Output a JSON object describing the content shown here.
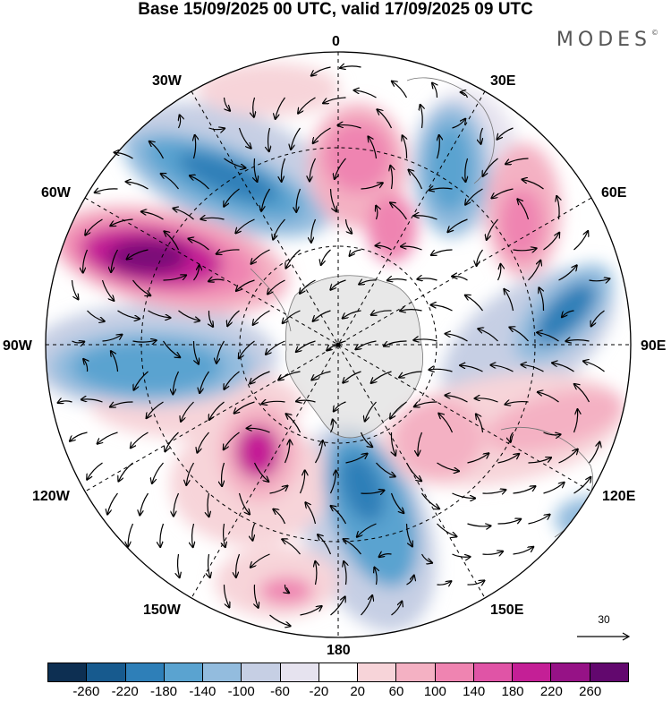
{
  "header": {
    "title": "Base 15/09/2025 00 UTC, valid 17/09/2025 09 UTC",
    "brand": "MODES",
    "brand_mark": "©"
  },
  "map": {
    "projection": "south polar stereographic",
    "longitude_labels": {
      "top": "0",
      "top_right": "30E",
      "right_upper": "60E",
      "right": "90E",
      "right_lower": "120E",
      "bottom_right": "150E",
      "bottom": "180",
      "bottom_left": "150W",
      "left_lower": "120W",
      "left": "90W",
      "left_upper": "60W",
      "top_left": "30W"
    },
    "reference_vector": {
      "value": "30",
      "icon": "arrow-right-icon"
    }
  },
  "colorbar": {
    "colors": [
      "#0d2f52",
      "#175a8e",
      "#2e7fb8",
      "#5aa3d0",
      "#93bcde",
      "#c6cfe4",
      "#e6e3ef",
      "#ffffff",
      "#f7d4d9",
      "#f4b1c3",
      "#ef84b1",
      "#e054a6",
      "#c41f96",
      "#961286",
      "#62086e"
    ],
    "ticks": [
      "-260",
      "-220",
      "-180",
      "-140",
      "-100",
      "-60",
      "-20",
      "20",
      "60",
      "100",
      "140",
      "180",
      "220",
      "260"
    ]
  }
}
